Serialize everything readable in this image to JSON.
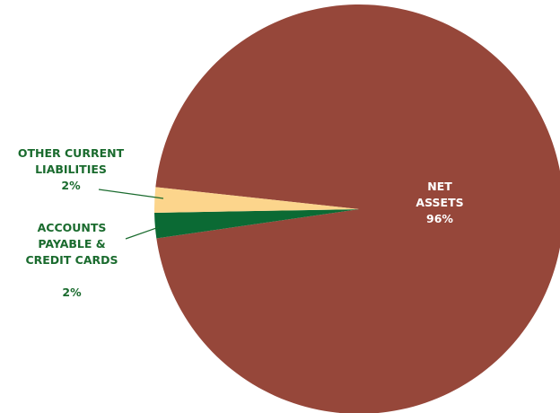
{
  "chart_data": {
    "type": "pie",
    "categories": [
      "OTHER CURRENT LIABILITIES",
      "ACCOUNTS PAYABLE & CREDIT CARDS",
      "NET ASSETS"
    ],
    "values": [
      2,
      2,
      96
    ],
    "value_labels": [
      "2%",
      "2%",
      "96%"
    ],
    "colors": [
      "#fcd58c",
      "#0b6a34",
      "#96473a"
    ]
  }
}
